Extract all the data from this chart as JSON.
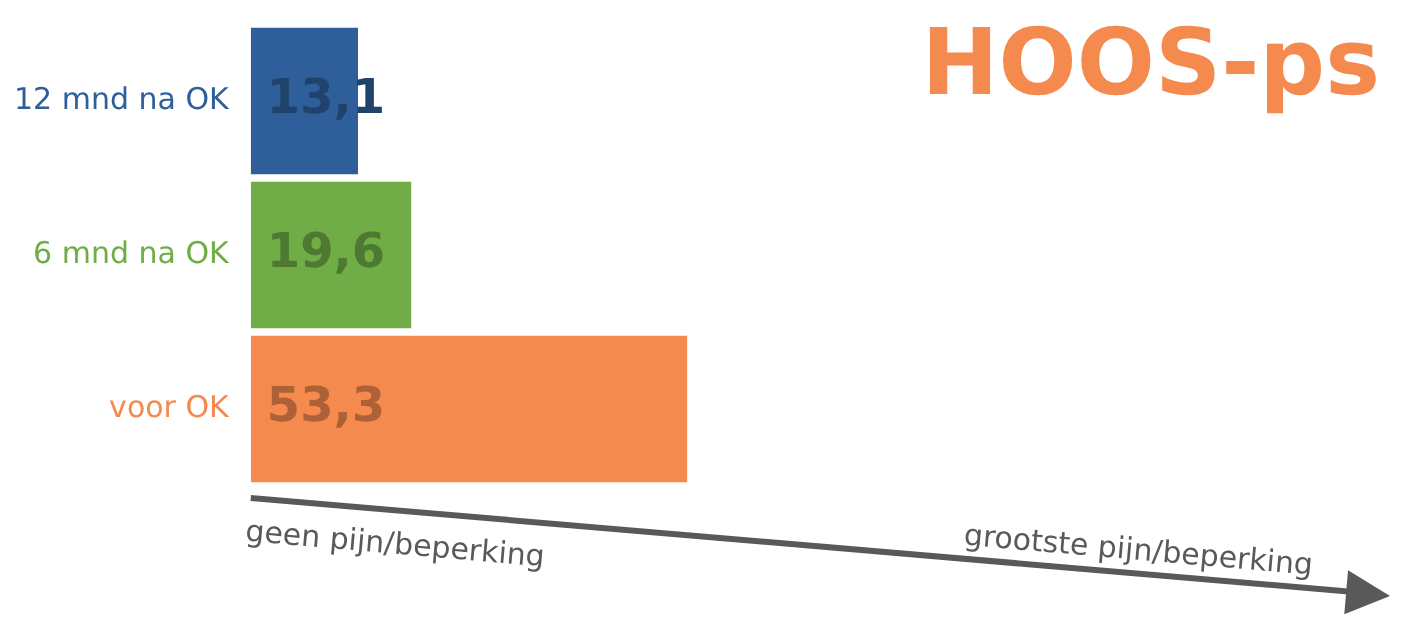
{
  "chart_data": {
    "type": "bar",
    "orientation": "horizontal",
    "title": "HOOS-ps",
    "categories": [
      "12 mnd na OK",
      "6 mnd na OK",
      "voor OK"
    ],
    "values": [
      13.1,
      19.6,
      53.3
    ],
    "value_labels": [
      "13,1",
      "19,6",
      "53,3"
    ],
    "colors": [
      "#2e5f9a",
      "#70ad47",
      "#f58a4e"
    ],
    "tick_labels": "y",
    "legend": false,
    "annotations": [
      "geen pijn/beperking",
      "grootste pijn/beperking"
    ]
  }
}
